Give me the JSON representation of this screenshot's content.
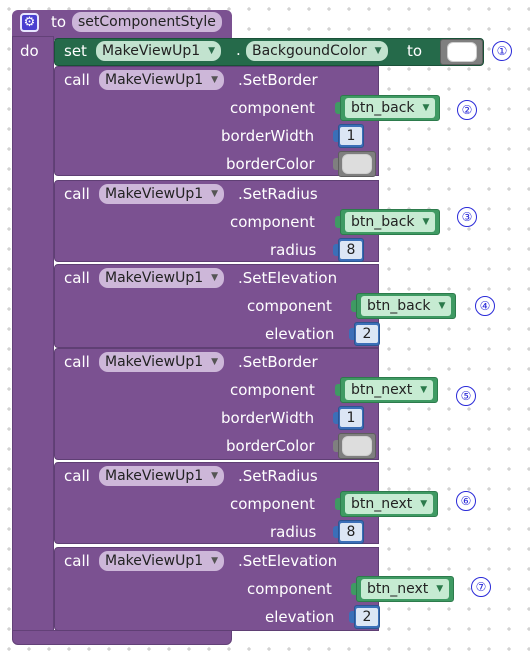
{
  "procedure": {
    "keyword_to": "to",
    "name": "setComponentStyle",
    "keyword_do": "do",
    "icon": "gear-icon"
  },
  "set_block": {
    "keyword_set": "set",
    "component": "MakeViewUp1",
    "dot": ".",
    "property": "BackgoundColor",
    "keyword_to": "to",
    "value_color": "#ffffff"
  },
  "calls": [
    {
      "keyword": "call",
      "component": "MakeViewUp1",
      "method": ".SetBorder",
      "params": [
        {
          "label": "component",
          "kind": "component",
          "value": "btn_back"
        },
        {
          "label": "borderWidth",
          "kind": "number",
          "value": "1"
        },
        {
          "label": "borderColor",
          "kind": "color",
          "value": "#dddddd"
        }
      ]
    },
    {
      "keyword": "call",
      "component": "MakeViewUp1",
      "method": ".SetRadius",
      "params": [
        {
          "label": "component",
          "kind": "component",
          "value": "btn_back"
        },
        {
          "label": "radius",
          "kind": "number",
          "value": "8"
        }
      ]
    },
    {
      "keyword": "call",
      "component": "MakeViewUp1",
      "method": ".SetElevation",
      "params": [
        {
          "label": "component",
          "kind": "component",
          "value": "btn_back"
        },
        {
          "label": "elevation",
          "kind": "number",
          "value": "2"
        }
      ]
    },
    {
      "keyword": "call",
      "component": "MakeViewUp1",
      "method": ".SetBorder",
      "params": [
        {
          "label": "component",
          "kind": "component",
          "value": "btn_next"
        },
        {
          "label": "borderWidth",
          "kind": "number",
          "value": "1"
        },
        {
          "label": "borderColor",
          "kind": "color",
          "value": "#dddddd"
        }
      ]
    },
    {
      "keyword": "call",
      "component": "MakeViewUp1",
      "method": ".SetRadius",
      "params": [
        {
          "label": "component",
          "kind": "component",
          "value": "btn_next"
        },
        {
          "label": "radius",
          "kind": "number",
          "value": "8"
        }
      ]
    },
    {
      "keyword": "call",
      "component": "MakeViewUp1",
      "method": ".SetElevation",
      "params": [
        {
          "label": "component",
          "kind": "component",
          "value": "btn_next"
        },
        {
          "label": "elevation",
          "kind": "number",
          "value": "2"
        }
      ]
    }
  ],
  "annotations": [
    "①",
    "②",
    "③",
    "④",
    "⑤",
    "⑥",
    "⑦"
  ],
  "colors": {
    "procedure": "#7b5191",
    "set_block": "#256a4a",
    "component": "#3f9a63",
    "number": "#3b6fb8",
    "color_block": "#7f7f7f",
    "annotation": "#2a2ad8"
  }
}
